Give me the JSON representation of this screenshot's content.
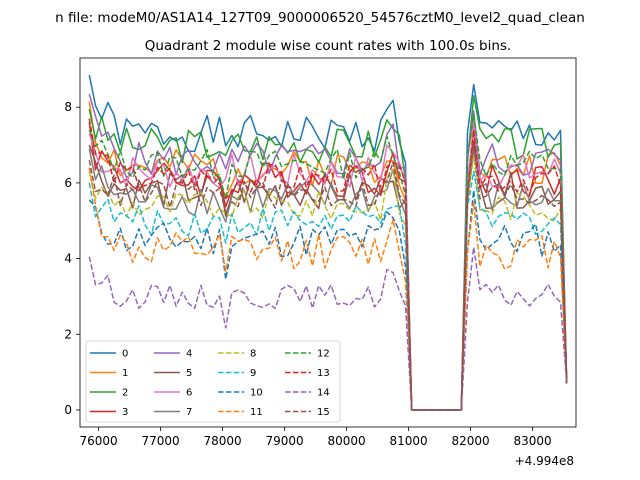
{
  "chart_data": {
    "type": "line",
    "suptitle": "n file: modeM0/AS1A14_127T09_9000006520_54576cztM0_level2_quad_clean",
    "title": "Quadrant 2 module wise count rates with 100.0s bins.",
    "xlabel": "",
    "ylabel": "",
    "x_offset_label": "+4.994e8",
    "xlim": [
      75700,
      83700
    ],
    "ylim": [
      -0.45,
      9.3
    ],
    "xticks": [
      76000,
      77000,
      78000,
      79000,
      80000,
      81000,
      82000,
      83000
    ],
    "xtick_labels": [
      "76000",
      "77000",
      "78000",
      "79000",
      "80000",
      "81000",
      "82000",
      "83000"
    ],
    "yticks": [
      0,
      2,
      4,
      6,
      8
    ],
    "ytick_labels": [
      "0",
      "2",
      "4",
      "6",
      "8"
    ],
    "legend_position": "lower-left",
    "legend_columns": 4,
    "x_start": 75850,
    "x_step": 100,
    "gap_start": 81000,
    "gap_end": 81900,
    "series": [
      {
        "name": "0",
        "color": "#1f77b4",
        "dashed": false,
        "level": 7.3,
        "start": 8.85,
        "noise": 0.3,
        "seed": 1
      },
      {
        "name": "1",
        "color": "#ff7f0e",
        "dashed": false,
        "level": 6.4,
        "start": 8.15,
        "noise": 0.3,
        "seed": 2
      },
      {
        "name": "2",
        "color": "#2ca02c",
        "dashed": false,
        "level": 7.0,
        "start": 7.95,
        "noise": 0.3,
        "seed": 3
      },
      {
        "name": "3",
        "color": "#d62728",
        "dashed": false,
        "level": 6.1,
        "start": 7.6,
        "noise": 0.3,
        "seed": 4
      },
      {
        "name": "4",
        "color": "#9467bd",
        "dashed": false,
        "level": 6.6,
        "start": 8.35,
        "noise": 0.3,
        "seed": 5
      },
      {
        "name": "5",
        "color": "#8c564b",
        "dashed": false,
        "level": 5.8,
        "start": 7.0,
        "noise": 0.3,
        "seed": 6
      },
      {
        "name": "6",
        "color": "#e377c2",
        "dashed": false,
        "level": 6.3,
        "start": 7.3,
        "noise": 0.3,
        "seed": 7
      },
      {
        "name": "7",
        "color": "#7f7f7f",
        "dashed": false,
        "level": 5.6,
        "start": 6.9,
        "noise": 0.3,
        "seed": 8
      },
      {
        "name": "8",
        "color": "#bcbd22",
        "dashed": true,
        "level": 5.4,
        "start": 6.3,
        "noise": 0.25,
        "seed": 9
      },
      {
        "name": "9",
        "color": "#17becf",
        "dashed": true,
        "level": 5.0,
        "start": 6.0,
        "noise": 0.25,
        "seed": 10
      },
      {
        "name": "10",
        "color": "#1f77b4",
        "dashed": true,
        "level": 4.5,
        "start": 5.55,
        "noise": 0.3,
        "seed": 11
      },
      {
        "name": "11",
        "color": "#ff7f0e",
        "dashed": true,
        "level": 4.2,
        "start": 6.4,
        "noise": 0.3,
        "seed": 12
      },
      {
        "name": "12",
        "color": "#2ca02c",
        "dashed": true,
        "level": 6.5,
        "start": 7.4,
        "noise": 0.25,
        "seed": 13
      },
      {
        "name": "13",
        "color": "#d62728",
        "dashed": true,
        "level": 6.1,
        "start": 7.7,
        "noise": 0.25,
        "seed": 14
      },
      {
        "name": "14",
        "color": "#9467bd",
        "dashed": true,
        "level": 3.0,
        "start": 4.05,
        "noise": 0.2,
        "seed": 15
      },
      {
        "name": "15",
        "color": "#8c564b",
        "dashed": true,
        "level": 5.7,
        "start": 6.6,
        "noise": 0.25,
        "seed": 16
      }
    ]
  }
}
